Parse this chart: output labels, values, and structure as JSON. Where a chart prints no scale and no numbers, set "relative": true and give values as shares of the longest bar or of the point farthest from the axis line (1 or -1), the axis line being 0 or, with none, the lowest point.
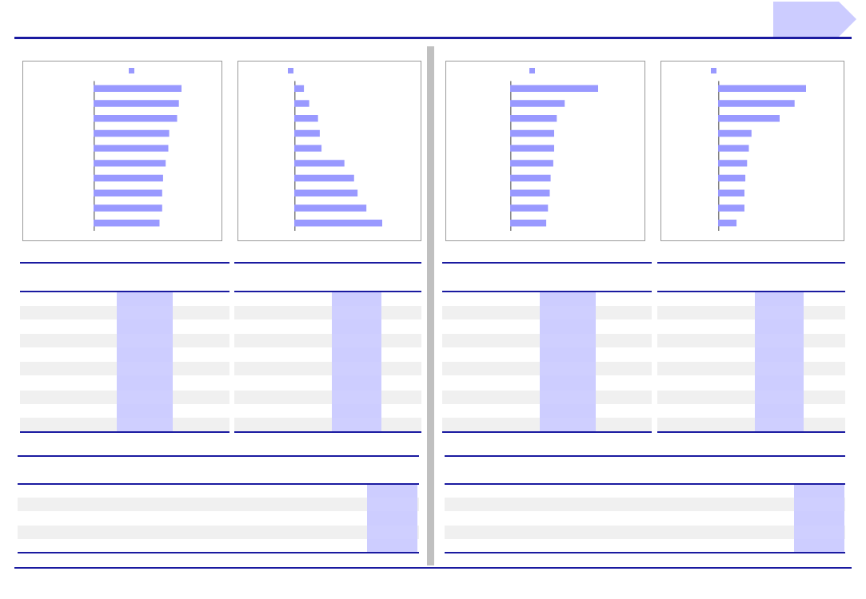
{
  "chart_data": [
    {
      "type": "bar",
      "orientation": "horizontal",
      "relative": true,
      "categories": [
        null,
        null,
        null,
        null,
        null,
        null,
        null,
        null,
        null,
        null
      ],
      "series": [
        {
          "color": "#9999ff",
          "values": [
            1,
            0.97,
            0.95,
            0.86,
            0.85,
            0.82,
            0.79,
            0.78,
            0.78,
            0.75
          ]
        }
      ]
    },
    {
      "type": "bar",
      "orientation": "horizontal",
      "relative": true,
      "categories": [
        null,
        null,
        null,
        null,
        null,
        null,
        null,
        null,
        null,
        null
      ],
      "series": [
        {
          "color": "#9999ff",
          "values": [
            0.11,
            0.17,
            0.27,
            0.29,
            0.31,
            0.57,
            0.68,
            0.72,
            0.82,
            1
          ]
        }
      ]
    },
    {
      "type": "bar",
      "orientation": "horizontal",
      "relative": true,
      "categories": [
        null,
        null,
        null,
        null,
        null,
        null,
        null,
        null,
        null,
        null
      ],
      "series": [
        {
          "color": "#9999ff",
          "values": [
            1,
            0.62,
            0.53,
            0.5,
            0.5,
            0.49,
            0.46,
            0.45,
            0.43,
            0.41
          ]
        }
      ]
    },
    {
      "type": "bar",
      "orientation": "horizontal",
      "relative": true,
      "categories": [
        null,
        null,
        null,
        null,
        null,
        null,
        null,
        null,
        null,
        null
      ],
      "series": [
        {
          "color": "#9999ff",
          "values": [
            1,
            0.87,
            0.7,
            0.38,
            0.35,
            0.33,
            0.31,
            0.3,
            0.3,
            0.21
          ]
        }
      ]
    }
  ]
}
